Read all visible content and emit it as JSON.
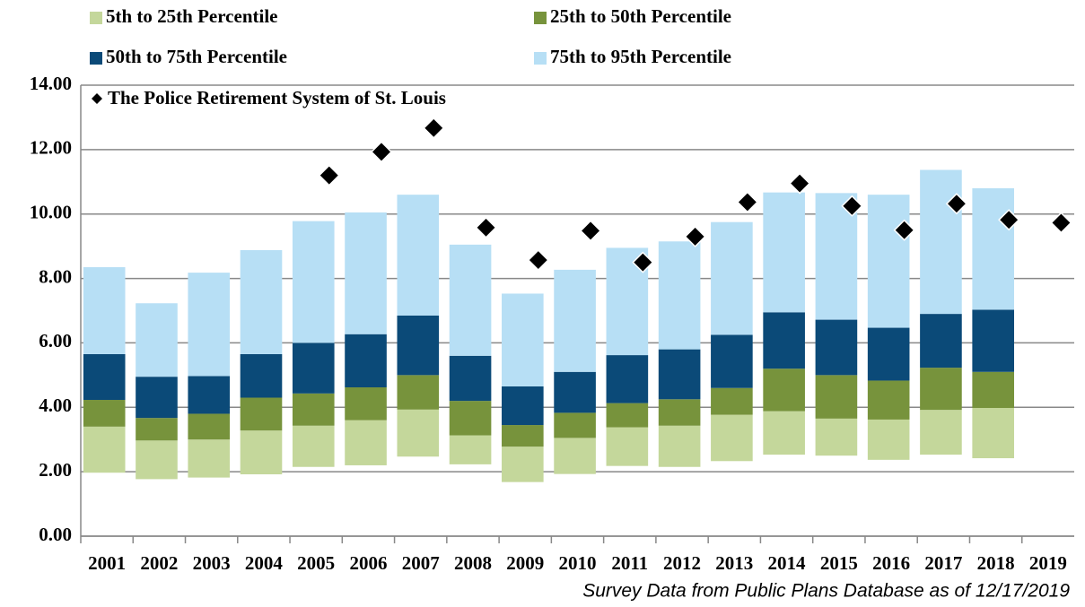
{
  "chart_data": {
    "type": "floating_stacked_bar",
    "categories": [
      "2001",
      "2002",
      "2003",
      "2004",
      "2005",
      "2006",
      "2007",
      "2008",
      "2009",
      "2010",
      "2011",
      "2012",
      "2013",
      "2014",
      "2015",
      "2016",
      "2017",
      "2018",
      "2019"
    ],
    "series": [
      {
        "name": "5th to 25th Percentile",
        "color": "#c4d79b",
        "values": [
          [
            1.97,
            3.4
          ],
          [
            1.77,
            2.97
          ],
          [
            1.82,
            3.0
          ],
          [
            1.92,
            3.28
          ],
          [
            2.15,
            3.43
          ],
          [
            2.2,
            3.6
          ],
          [
            2.47,
            3.93
          ],
          [
            2.23,
            3.13
          ],
          [
            1.68,
            2.78
          ],
          [
            1.93,
            3.05
          ],
          [
            2.18,
            3.38
          ],
          [
            2.15,
            3.43
          ],
          [
            2.33,
            3.77
          ],
          [
            2.53,
            3.88
          ],
          [
            2.5,
            3.65
          ],
          [
            2.37,
            3.62
          ],
          [
            2.53,
            3.92
          ],
          [
            2.42,
            3.98
          ],
          null
        ]
      },
      {
        "name": "25th to 50th Percentile",
        "color": "#77933c",
        "values": [
          [
            3.4,
            4.23
          ],
          [
            2.97,
            3.67
          ],
          [
            3.0,
            3.8
          ],
          [
            3.28,
            4.3
          ],
          [
            3.43,
            4.43
          ],
          [
            3.6,
            4.62
          ],
          [
            3.93,
            5.0
          ],
          [
            3.13,
            4.2
          ],
          [
            2.78,
            3.45
          ],
          [
            3.05,
            3.83
          ],
          [
            3.38,
            4.13
          ],
          [
            3.43,
            4.25
          ],
          [
            3.77,
            4.6
          ],
          [
            3.88,
            5.2
          ],
          [
            3.65,
            5.0
          ],
          [
            3.62,
            4.83
          ],
          [
            3.92,
            5.23
          ],
          [
            3.98,
            5.1
          ],
          null
        ]
      },
      {
        "name": "50th to 75th Percentile",
        "color": "#0b4a78",
        "values": [
          [
            4.23,
            5.65
          ],
          [
            3.67,
            4.95
          ],
          [
            3.8,
            4.97
          ],
          [
            4.3,
            5.65
          ],
          [
            4.43,
            6.0
          ],
          [
            4.62,
            6.27
          ],
          [
            5.0,
            6.85
          ],
          [
            4.2,
            5.6
          ],
          [
            3.45,
            4.65
          ],
          [
            3.83,
            5.1
          ],
          [
            4.13,
            5.62
          ],
          [
            4.25,
            5.8
          ],
          [
            4.6,
            6.25
          ],
          [
            5.2,
            6.95
          ],
          [
            5.0,
            6.72
          ],
          [
            4.83,
            6.47
          ],
          [
            5.23,
            6.9
          ],
          [
            5.1,
            7.03
          ],
          null
        ]
      },
      {
        "name": "75th to 95th Percentile",
        "color": "#b7dff5",
        "values": [
          [
            5.65,
            8.35
          ],
          [
            4.95,
            7.23
          ],
          [
            4.97,
            8.18
          ],
          [
            5.65,
            8.88
          ],
          [
            6.0,
            9.78
          ],
          [
            6.27,
            10.05
          ],
          [
            6.85,
            10.6
          ],
          [
            5.6,
            9.05
          ],
          [
            4.65,
            7.53
          ],
          [
            5.1,
            8.27
          ],
          [
            5.62,
            8.95
          ],
          [
            5.8,
            9.15
          ],
          [
            6.25,
            9.75
          ],
          [
            6.95,
            10.67
          ],
          [
            6.72,
            10.65
          ],
          [
            6.47,
            10.6
          ],
          [
            6.9,
            11.37
          ],
          [
            7.03,
            10.8
          ],
          null
        ]
      }
    ],
    "points": {
      "name": "The Police Retirement System of St. Louis",
      "color": "#000000",
      "values": [
        null,
        null,
        null,
        null,
        11.2,
        11.93,
        12.67,
        9.58,
        8.57,
        9.48,
        8.5,
        9.3,
        10.37,
        10.95,
        10.25,
        9.5,
        10.32,
        9.82,
        9.73
      ]
    },
    "ylim": [
      0,
      14
    ],
    "yticks": [
      {
        "value": 0,
        "label": "0.00"
      },
      {
        "value": 2,
        "label": "2.00"
      },
      {
        "value": 4,
        "label": "4.00"
      },
      {
        "value": 6,
        "label": "6.00"
      },
      {
        "value": 8,
        "label": "8.00"
      },
      {
        "value": 10,
        "label": "10.00"
      },
      {
        "value": 12,
        "label": "12.00"
      },
      {
        "value": 14,
        "label": "14.00"
      }
    ],
    "grid": true,
    "annotation": "Survey Data from Public Plans Database as of 12/17/2019"
  }
}
